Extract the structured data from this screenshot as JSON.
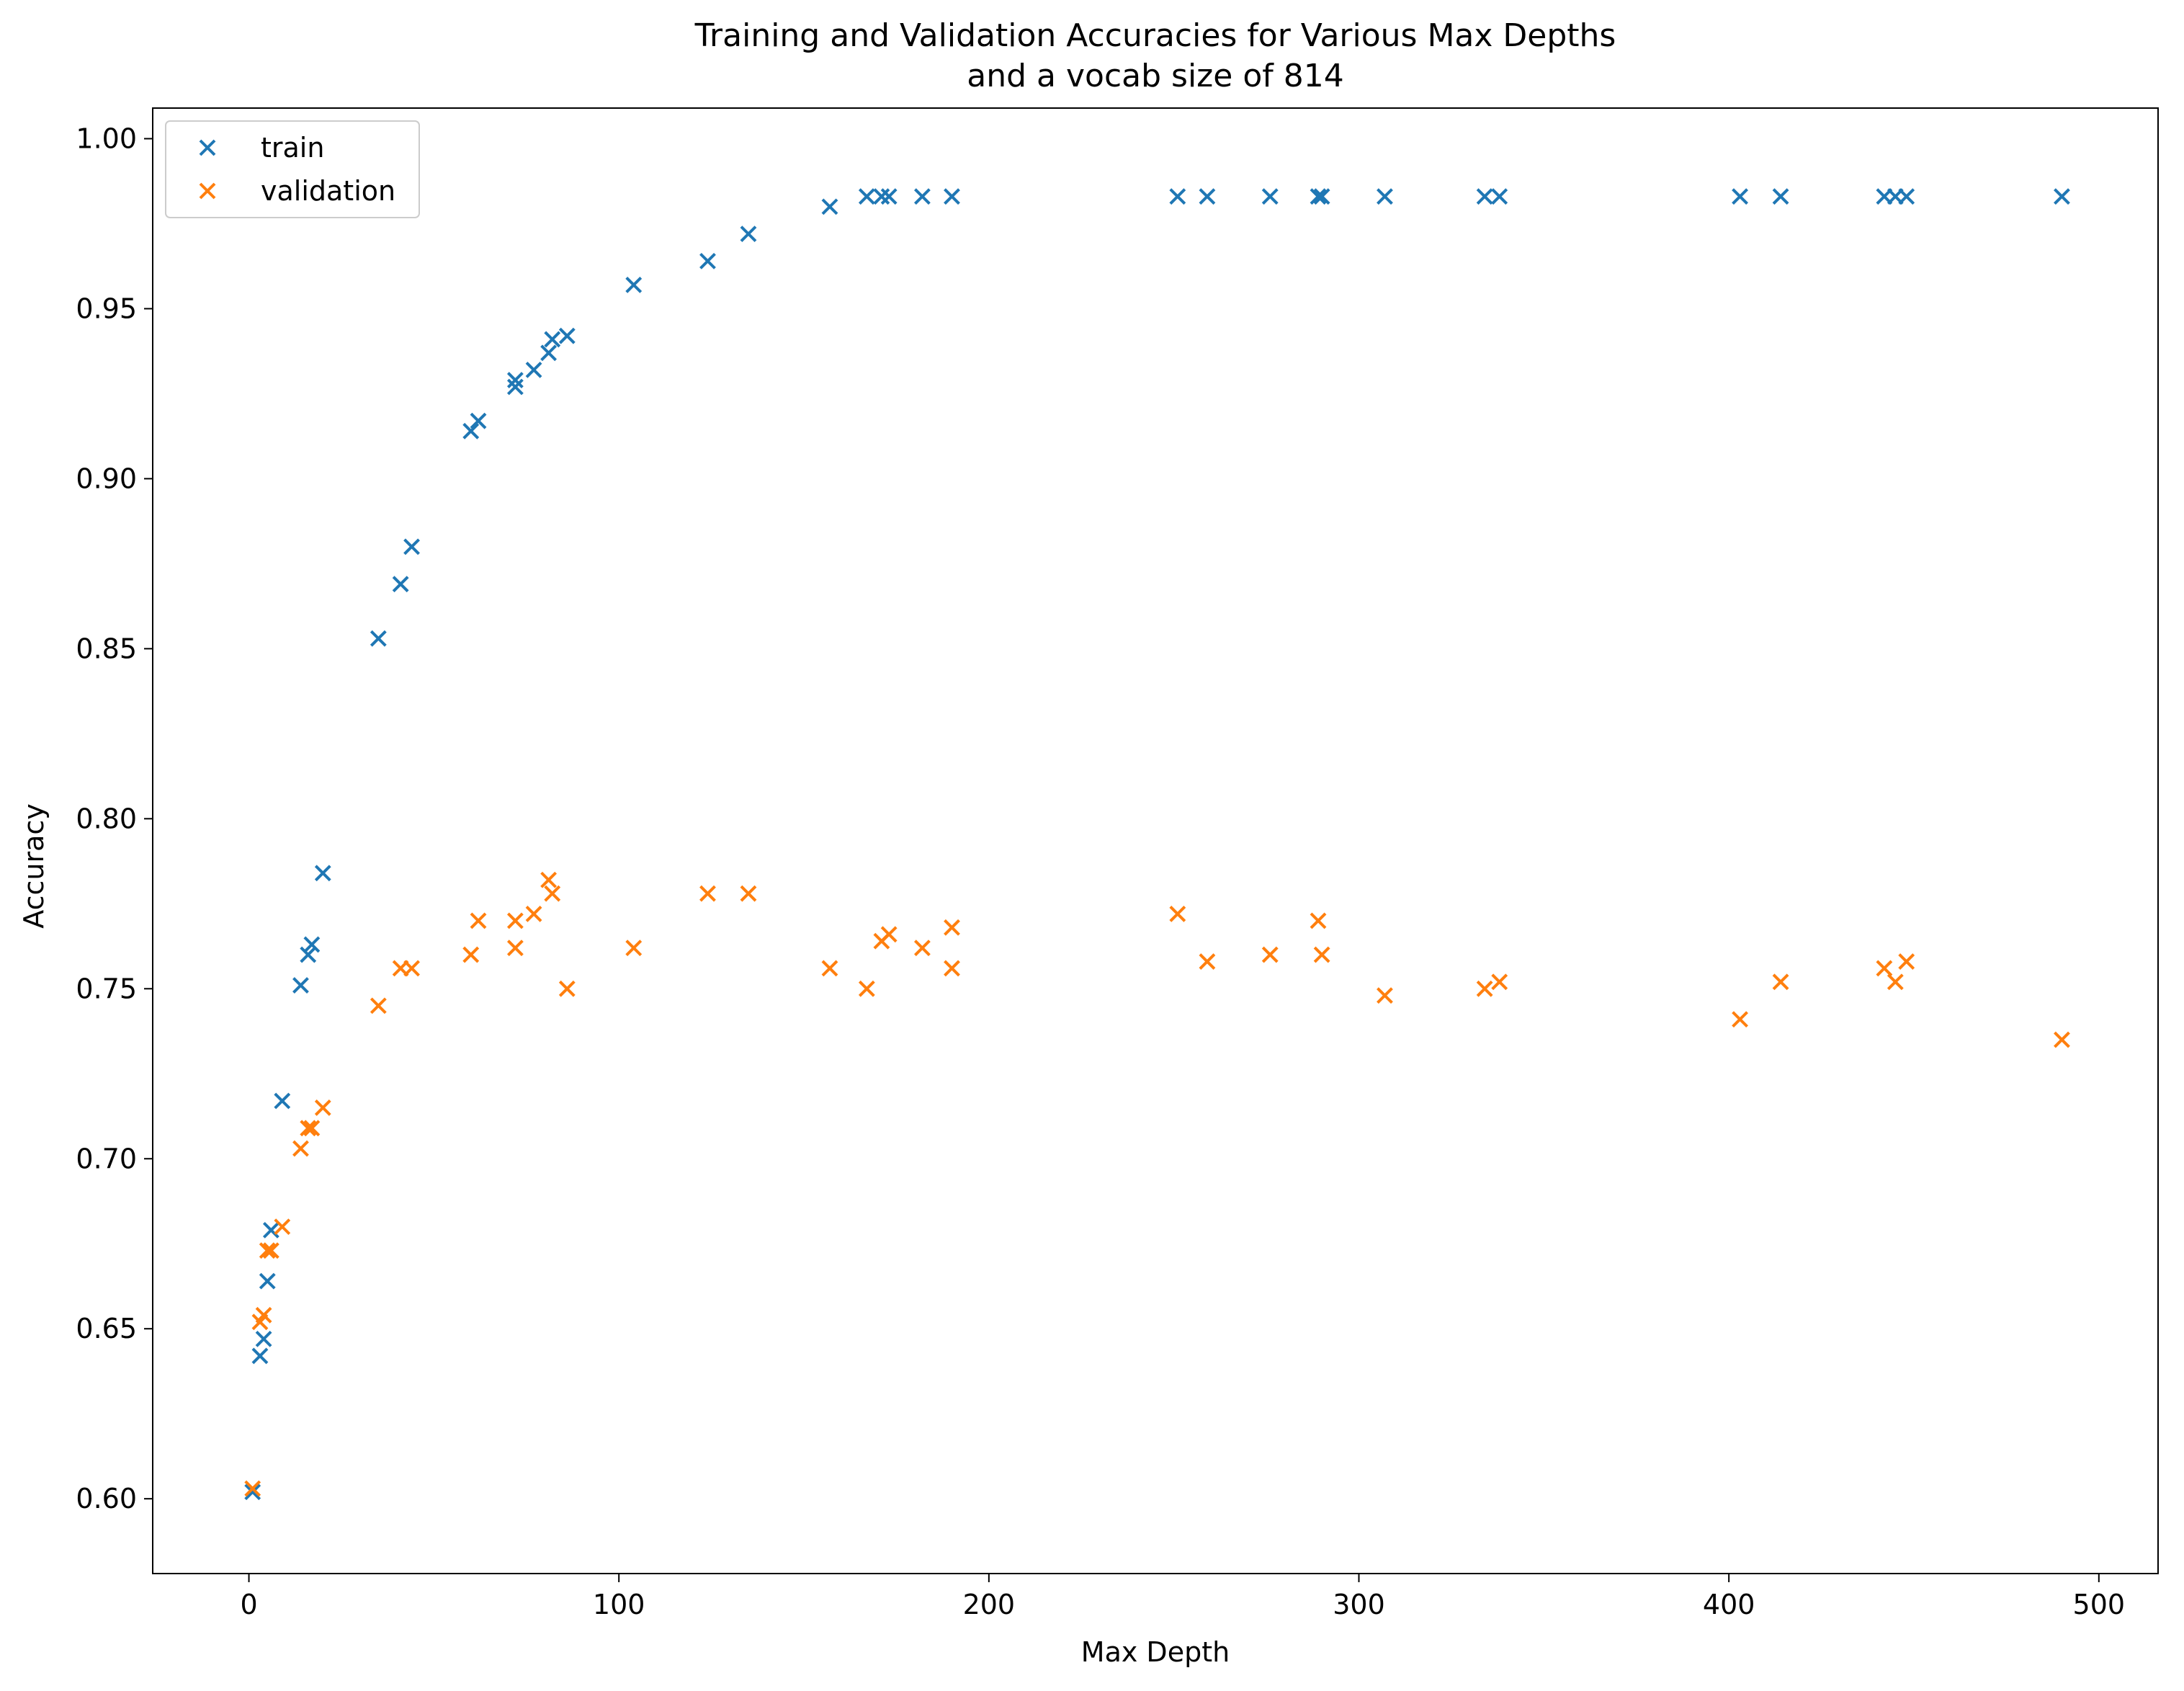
{
  "chart_data": {
    "type": "scatter",
    "title": [
      "Training and Validation Accuracies for Various Max Depths",
      "and a vocab size of 814"
    ],
    "xlabel": "Max Depth",
    "ylabel": "Accuracy",
    "xlim": [
      -26,
      516
    ],
    "ylim": [
      0.578,
      1.009
    ],
    "xticks": [
      0,
      100,
      200,
      300,
      400,
      500
    ],
    "xtick_labels": [
      "0",
      "100",
      "200",
      "300",
      "400",
      "500"
    ],
    "yticks": [
      0.6,
      0.65,
      0.7,
      0.75,
      0.8,
      0.85,
      0.9,
      0.95,
      1.0
    ],
    "ytick_labels": [
      "0.60",
      "0.65",
      "0.70",
      "0.75",
      "0.80",
      "0.85",
      "0.90",
      "0.95",
      "1.00"
    ],
    "grid": false,
    "legend_position": "top-left",
    "marker": "x",
    "series": [
      {
        "name": "train",
        "color": "#1f77b4",
        "points": [
          [
            1,
            0.602
          ],
          [
            3,
            0.642
          ],
          [
            4,
            0.647
          ],
          [
            5,
            0.664
          ],
          [
            6,
            0.679
          ],
          [
            9,
            0.717
          ],
          [
            14,
            0.751
          ],
          [
            16,
            0.76
          ],
          [
            17,
            0.763
          ],
          [
            20,
            0.784
          ],
          [
            35,
            0.853
          ],
          [
            41,
            0.869
          ],
          [
            44,
            0.88
          ],
          [
            60,
            0.914
          ],
          [
            62,
            0.917
          ],
          [
            72,
            0.927
          ],
          [
            72,
            0.929
          ],
          [
            77,
            0.932
          ],
          [
            81,
            0.937
          ],
          [
            82,
            0.941
          ],
          [
            86,
            0.942
          ],
          [
            104,
            0.957
          ],
          [
            124,
            0.964
          ],
          [
            135,
            0.972
          ],
          [
            157,
            0.98
          ],
          [
            167,
            0.983
          ],
          [
            171,
            0.983
          ],
          [
            173,
            0.983
          ],
          [
            182,
            0.983
          ],
          [
            190,
            0.983
          ],
          [
            251,
            0.983
          ],
          [
            259,
            0.983
          ],
          [
            276,
            0.983
          ],
          [
            289,
            0.983
          ],
          [
            290,
            0.983
          ],
          [
            307,
            0.983
          ],
          [
            334,
            0.983
          ],
          [
            338,
            0.983
          ],
          [
            403,
            0.983
          ],
          [
            414,
            0.983
          ],
          [
            442,
            0.983
          ],
          [
            445,
            0.983
          ],
          [
            448,
            0.983
          ],
          [
            490,
            0.983
          ]
        ]
      },
      {
        "name": "validation",
        "color": "#ff7f0e",
        "points": [
          [
            1,
            0.603
          ],
          [
            3,
            0.652
          ],
          [
            4,
            0.654
          ],
          [
            5,
            0.673
          ],
          [
            6,
            0.673
          ],
          [
            9,
            0.68
          ],
          [
            14,
            0.703
          ],
          [
            16,
            0.709
          ],
          [
            17,
            0.709
          ],
          [
            20,
            0.715
          ],
          [
            35,
            0.745
          ],
          [
            41,
            0.756
          ],
          [
            44,
            0.756
          ],
          [
            60,
            0.76
          ],
          [
            62,
            0.77
          ],
          [
            72,
            0.762
          ],
          [
            72,
            0.77
          ],
          [
            77,
            0.772
          ],
          [
            81,
            0.782
          ],
          [
            82,
            0.778
          ],
          [
            86,
            0.75
          ],
          [
            104,
            0.762
          ],
          [
            124,
            0.778
          ],
          [
            135,
            0.778
          ],
          [
            157,
            0.756
          ],
          [
            167,
            0.75
          ],
          [
            171,
            0.764
          ],
          [
            173,
            0.766
          ],
          [
            182,
            0.762
          ],
          [
            190,
            0.756
          ],
          [
            190,
            0.768
          ],
          [
            251,
            0.772
          ],
          [
            259,
            0.758
          ],
          [
            276,
            0.76
          ],
          [
            289,
            0.77
          ],
          [
            290,
            0.76
          ],
          [
            307,
            0.748
          ],
          [
            334,
            0.75
          ],
          [
            338,
            0.752
          ],
          [
            403,
            0.741
          ],
          [
            414,
            0.752
          ],
          [
            442,
            0.756
          ],
          [
            445,
            0.752
          ],
          [
            448,
            0.758
          ],
          [
            490,
            0.735
          ]
        ]
      }
    ]
  }
}
